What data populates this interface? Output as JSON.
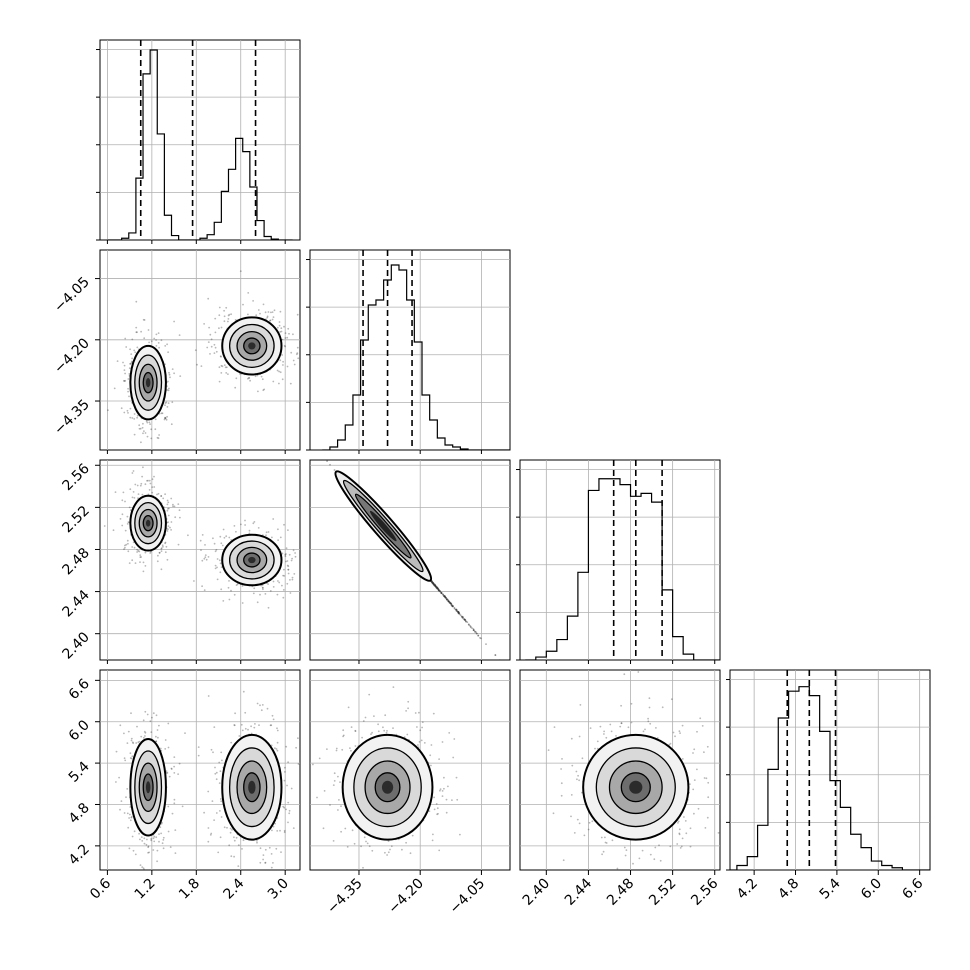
{
  "chart_data": [
    {
      "type": "histogram",
      "panel": "1-1",
      "y_ticks_shown": false,
      "bins_lo": 0.6,
      "bins_hi": 3.1,
      "counts": [
        0,
        0,
        2,
        8,
        70,
        188,
        215,
        120,
        28,
        5,
        0,
        0,
        0,
        2,
        6,
        20,
        55,
        80,
        115,
        100,
        60,
        22,
        4,
        1,
        0,
        0
      ],
      "quantiles": [
        1.05,
        1.75,
        2.6
      ],
      "ymax": 215
    },
    {
      "type": "scatter-density",
      "panel": "2-1",
      "clusters": [
        {
          "x": 1.15,
          "y": -4.305,
          "sx": 0.12,
          "sy": 0.045
        },
        {
          "x": 2.55,
          "y": -4.215,
          "sx": 0.2,
          "sy": 0.035
        }
      ]
    },
    {
      "type": "histogram",
      "panel": "2-2",
      "y_ticks_shown": false,
      "bins_lo": -4.44,
      "bins_hi": -3.97,
      "counts": [
        0,
        3,
        10,
        25,
        55,
        110,
        145,
        150,
        170,
        185,
        180,
        150,
        108,
        55,
        30,
        12,
        5,
        3,
        1,
        0,
        0,
        0,
        0,
        0,
        0
      ],
      "quantiles": [
        -4.34,
        -4.28,
        -4.22
      ],
      "ymax": 190
    },
    {
      "type": "scatter-density",
      "panel": "3-1",
      "clusters": [
        {
          "x": 1.15,
          "y": 2.505,
          "sx": 0.12,
          "sy": 0.013
        },
        {
          "x": 2.55,
          "y": 2.47,
          "sx": 0.2,
          "sy": 0.012
        }
      ]
    },
    {
      "type": "scatter-density",
      "panel": "3-2",
      "correlated_line": {
        "x0": -4.42,
        "y0": 2.56,
        "x1": -4.05,
        "y1": 2.395
      }
    },
    {
      "type": "histogram",
      "panel": "3-3",
      "y_ticks_shown": false,
      "bins_lo": 2.38,
      "bins_hi": 2.57,
      "counts": [
        0,
        1,
        3,
        7,
        15,
        30,
        58,
        62,
        62,
        60,
        56,
        57,
        54,
        24,
        8,
        2,
        0,
        0,
        0
      ],
      "quantiles": [
        2.464,
        2.485,
        2.51
      ],
      "ymax": 65
    },
    {
      "type": "scatter-density",
      "panel": "4-1",
      "clusters": [
        {
          "x": 1.15,
          "y": 5.05,
          "sx": 0.12,
          "sy": 0.35
        },
        {
          "x": 2.55,
          "y": 5.05,
          "sx": 0.2,
          "sy": 0.38
        }
      ]
    },
    {
      "type": "scatter-density",
      "panel": "4-2",
      "clusters": [
        {
          "x": -4.28,
          "y": 5.05,
          "sx": 0.055,
          "sy": 0.38
        }
      ]
    },
    {
      "type": "scatter-density",
      "panel": "4-3",
      "clusters": [
        {
          "x": 2.485,
          "y": 5.05,
          "sx": 0.025,
          "sy": 0.38
        }
      ]
    },
    {
      "type": "histogram",
      "panel": "4-4",
      "y_ticks_shown": false,
      "bins_lo": 3.8,
      "bins_hi": 6.8,
      "counts": [
        0,
        2,
        6,
        20,
        45,
        68,
        80,
        82,
        78,
        62,
        40,
        28,
        16,
        10,
        4,
        2,
        1,
        0,
        0,
        0
      ],
      "quantiles": [
        4.68,
        5.0,
        5.38
      ],
      "ymax": 85
    }
  ],
  "axes": {
    "p1_x_ticks": [
      "0.6",
      "1.2",
      "1.8",
      "2.4",
      "3.0"
    ],
    "p2_x_ticks": [
      "−4.35",
      "−4.20",
      "−4.05"
    ],
    "p3_x_ticks": [
      "2.40",
      "2.44",
      "2.48",
      "2.52",
      "2.56"
    ],
    "p4_x_ticks": [
      "4.2",
      "4.8",
      "5.4",
      "6.0",
      "6.6"
    ],
    "p2_y_ticks": [
      "−4.05",
      "−4.20",
      "−4.35"
    ],
    "p3_y_ticks": [
      "2.56",
      "2.52",
      "2.48",
      "2.44",
      "2.40"
    ],
    "p4_y_ticks": [
      "6.6",
      "6.0",
      "5.4",
      "4.8",
      "4.2"
    ]
  }
}
